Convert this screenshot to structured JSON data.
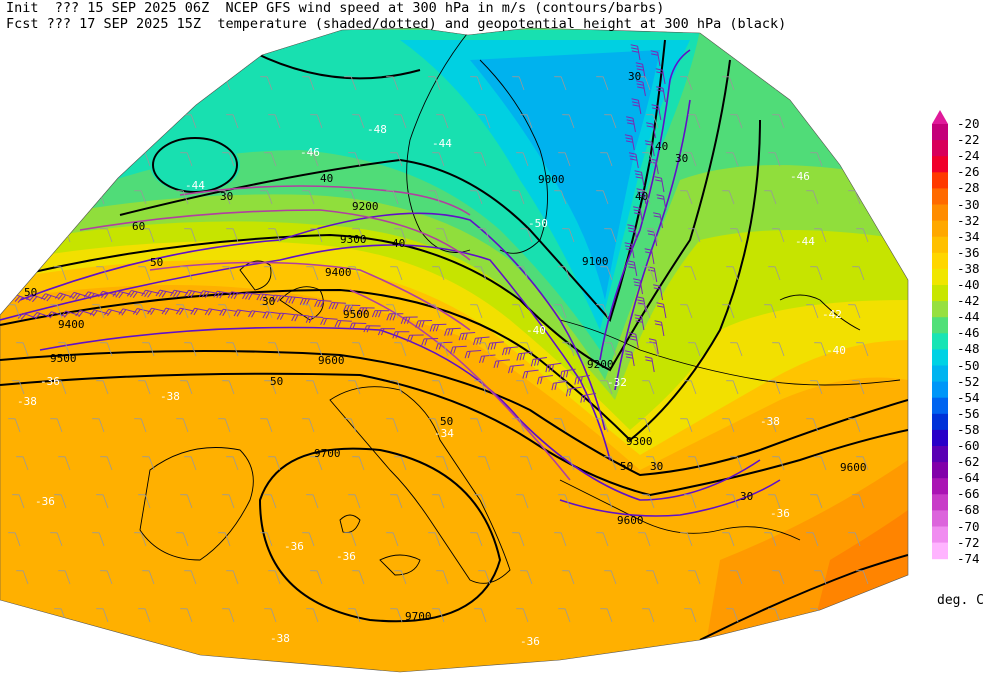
{
  "header": {
    "line1": "Init  ??? 15 SEP 2025 06Z  NCEP GFS wind speed at 300 hPa in m/s (contours/barbs)",
    "line2": "Fcst ??? 17 SEP 2025 15Z  temperature (shaded/dotted) and geopotential height at 300 hPa (black)"
  },
  "colorbar": {
    "units": "deg. C",
    "levels": [
      {
        "label": "-20",
        "color": "#e0199a"
      },
      {
        "label": "-22",
        "color": "#c4007a"
      },
      {
        "label": "-24",
        "color": "#d8005a"
      },
      {
        "label": "-26",
        "color": "#f0002a"
      },
      {
        "label": "-28",
        "color": "#ff3a00"
      },
      {
        "label": "-30",
        "color": "#ff6a00"
      },
      {
        "label": "-32",
        "color": "#ff8c00"
      },
      {
        "label": "-34",
        "color": "#ffa800"
      },
      {
        "label": "-36",
        "color": "#ffc000"
      },
      {
        "label": "-38",
        "color": "#ffd600"
      },
      {
        "label": "-40",
        "color": "#f0e600"
      },
      {
        "label": "-42",
        "color": "#c8e600"
      },
      {
        "label": "-44",
        "color": "#96e040"
      },
      {
        "label": "-46",
        "color": "#50e078"
      },
      {
        "label": "-48",
        "color": "#18e4b4"
      },
      {
        "label": "-50",
        "color": "#00d2e4"
      },
      {
        "label": "-52",
        "color": "#00b4f0"
      },
      {
        "label": "-54",
        "color": "#0096f8"
      },
      {
        "label": "-56",
        "color": "#0064f0"
      },
      {
        "label": "-58",
        "color": "#0032d8"
      },
      {
        "label": "-60",
        "color": "#2800c8"
      },
      {
        "label": "-62",
        "color": "#5a00b4"
      },
      {
        "label": "-64",
        "color": "#8200aa"
      },
      {
        "label": "-66",
        "color": "#aa14b4"
      },
      {
        "label": "-68",
        "color": "#c83cc8"
      },
      {
        "label": "-70",
        "color": "#dc64dc"
      },
      {
        "label": "-72",
        "color": "#f08cf0"
      },
      {
        "label": "-74",
        "color": "#ffb4ff"
      }
    ]
  },
  "map": {
    "height_labels": [
      "9000",
      "9100",
      "9200",
      "9200",
      "9300",
      "9300",
      "9400",
      "9400",
      "9500",
      "9500",
      "9600",
      "9600",
      "9600",
      "9700",
      "9700"
    ],
    "wind_labels": [
      "30",
      "30",
      "30",
      "30",
      "30",
      "30",
      "40",
      "40",
      "40",
      "40",
      "50",
      "50",
      "50",
      "50",
      "50",
      "60"
    ],
    "temp_labels": [
      "-50",
      "-48",
      "-46",
      "-46",
      "-44",
      "-44",
      "-44",
      "-42",
      "-40",
      "-40",
      "-38",
      "-38",
      "-38",
      "-38",
      "-36",
      "-36",
      "-36",
      "-36",
      "-36",
      "-36",
      "-34",
      "-32"
    ]
  }
}
